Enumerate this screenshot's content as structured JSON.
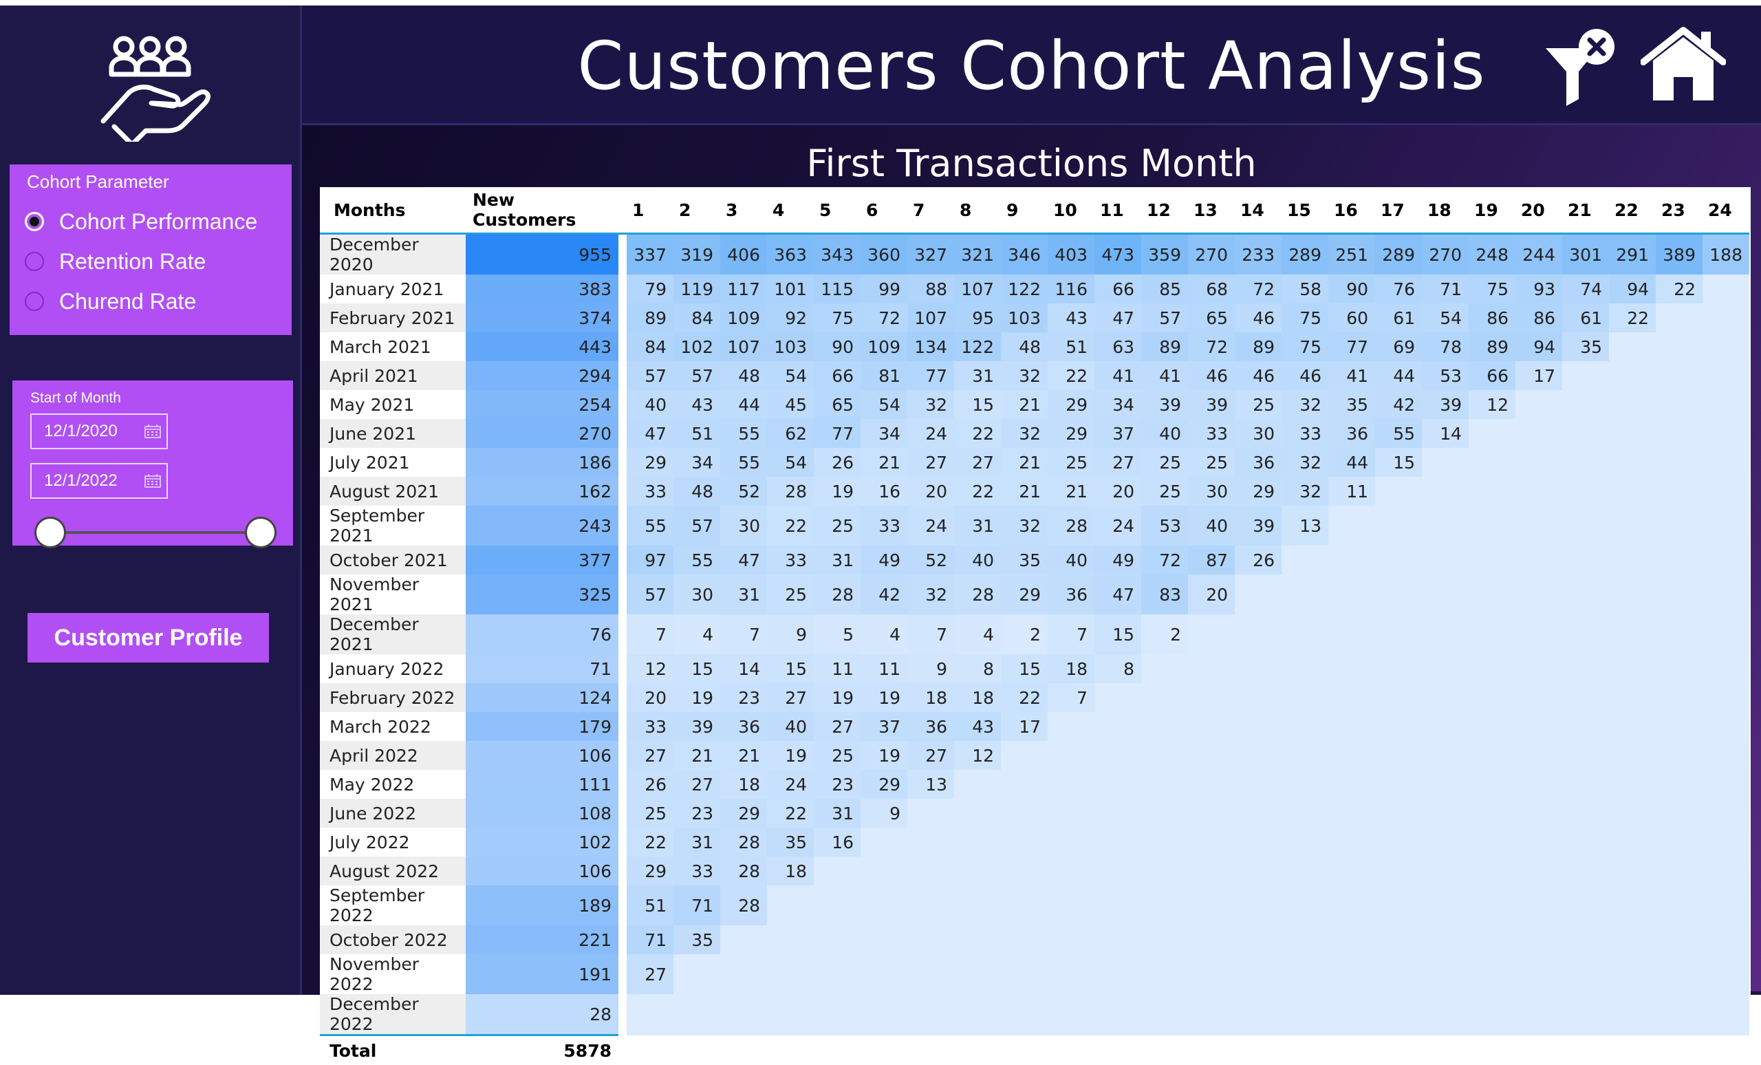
{
  "header": {
    "title": "Customers Cohort Analysis"
  },
  "main": {
    "section_title": "First Transactions Month"
  },
  "sidebar": {
    "logo_icon": "hand-holding-people-icon",
    "cohort_parameter": {
      "title": "Cohort Parameter",
      "options": [
        {
          "label": "Cohort Performance",
          "selected": true
        },
        {
          "label": "Retention Rate",
          "selected": false
        },
        {
          "label": "Churend Rate",
          "selected": false
        }
      ]
    },
    "date_filter": {
      "title": "Start of Month",
      "start": "12/1/2020",
      "end": "12/1/2022"
    },
    "profile_button": "Customer Profile"
  },
  "icons": {
    "clear_filter": "filter-clear-icon",
    "home": "home-icon",
    "calendar": "calendar-icon"
  },
  "colors": {
    "panel": "#b14ff4",
    "background": "#1d1746",
    "accent_line": "#24a0d8"
  },
  "table": {
    "headers": {
      "months": "Months",
      "new_customers": "New Customers"
    },
    "period_headers": [
      "1",
      "2",
      "3",
      "4",
      "5",
      "6",
      "7",
      "8",
      "9",
      "10",
      "11",
      "12",
      "13",
      "14",
      "15",
      "16",
      "17",
      "18",
      "19",
      "20",
      "21",
      "22",
      "23",
      "24"
    ],
    "rows": [
      {
        "month": "December 2020",
        "new": 955,
        "values": [
          337,
          319,
          406,
          363,
          343,
          360,
          327,
          321,
          346,
          403,
          473,
          359,
          270,
          233,
          289,
          251,
          289,
          270,
          248,
          244,
          301,
          291,
          389,
          188
        ]
      },
      {
        "month": "January 2021",
        "new": 383,
        "values": [
          79,
          119,
          117,
          101,
          115,
          99,
          88,
          107,
          122,
          116,
          66,
          85,
          68,
          72,
          58,
          90,
          76,
          71,
          75,
          93,
          74,
          94,
          22
        ]
      },
      {
        "month": "February 2021",
        "new": 374,
        "values": [
          89,
          84,
          109,
          92,
          75,
          72,
          107,
          95,
          103,
          43,
          47,
          57,
          65,
          46,
          75,
          60,
          61,
          54,
          86,
          86,
          61,
          22
        ]
      },
      {
        "month": "March 2021",
        "new": 443,
        "values": [
          84,
          102,
          107,
          103,
          90,
          109,
          134,
          122,
          48,
          51,
          63,
          89,
          72,
          89,
          75,
          77,
          69,
          78,
          89,
          94,
          35
        ]
      },
      {
        "month": "April 2021",
        "new": 294,
        "values": [
          57,
          57,
          48,
          54,
          66,
          81,
          77,
          31,
          32,
          22,
          41,
          41,
          46,
          46,
          46,
          41,
          44,
          53,
          66,
          17
        ]
      },
      {
        "month": "May 2021",
        "new": 254,
        "values": [
          40,
          43,
          44,
          45,
          65,
          54,
          32,
          15,
          21,
          29,
          34,
          39,
          39,
          25,
          32,
          35,
          42,
          39,
          12
        ]
      },
      {
        "month": "June 2021",
        "new": 270,
        "values": [
          47,
          51,
          55,
          62,
          77,
          34,
          24,
          22,
          32,
          29,
          37,
          40,
          33,
          30,
          33,
          36,
          55,
          14
        ]
      },
      {
        "month": "July 2021",
        "new": 186,
        "values": [
          29,
          34,
          55,
          54,
          26,
          21,
          27,
          27,
          21,
          25,
          27,
          25,
          25,
          36,
          32,
          44,
          15
        ]
      },
      {
        "month": "August 2021",
        "new": 162,
        "values": [
          33,
          48,
          52,
          28,
          19,
          16,
          20,
          22,
          21,
          21,
          20,
          25,
          30,
          29,
          32,
          11
        ]
      },
      {
        "month": "September 2021",
        "new": 243,
        "values": [
          55,
          57,
          30,
          22,
          25,
          33,
          24,
          31,
          32,
          28,
          24,
          53,
          40,
          39,
          13
        ]
      },
      {
        "month": "October 2021",
        "new": 377,
        "values": [
          97,
          55,
          47,
          33,
          31,
          49,
          52,
          40,
          35,
          40,
          49,
          72,
          87,
          26
        ]
      },
      {
        "month": "November 2021",
        "new": 325,
        "values": [
          57,
          30,
          31,
          25,
          28,
          42,
          32,
          28,
          29,
          36,
          47,
          83,
          20
        ]
      },
      {
        "month": "December 2021",
        "new": 76,
        "values": [
          7,
          4,
          7,
          9,
          5,
          4,
          7,
          4,
          2,
          7,
          15,
          2
        ]
      },
      {
        "month": "January 2022",
        "new": 71,
        "values": [
          12,
          15,
          14,
          15,
          11,
          11,
          9,
          8,
          15,
          18,
          8
        ]
      },
      {
        "month": "February 2022",
        "new": 124,
        "values": [
          20,
          19,
          23,
          27,
          19,
          19,
          18,
          18,
          22,
          7
        ]
      },
      {
        "month": "March 2022",
        "new": 179,
        "values": [
          33,
          39,
          36,
          40,
          27,
          37,
          36,
          43,
          17
        ]
      },
      {
        "month": "April 2022",
        "new": 106,
        "values": [
          27,
          21,
          21,
          19,
          25,
          19,
          27,
          12
        ]
      },
      {
        "month": "May 2022",
        "new": 111,
        "values": [
          26,
          27,
          18,
          24,
          23,
          29,
          13
        ]
      },
      {
        "month": "June 2022",
        "new": 108,
        "values": [
          25,
          23,
          29,
          22,
          31,
          9
        ]
      },
      {
        "month": "July 2022",
        "new": 102,
        "values": [
          22,
          31,
          28,
          35,
          16
        ]
      },
      {
        "month": "August 2022",
        "new": 106,
        "values": [
          29,
          33,
          28,
          18
        ]
      },
      {
        "month": "September 2022",
        "new": 189,
        "values": [
          51,
          71,
          28
        ]
      },
      {
        "month": "October 2022",
        "new": 221,
        "values": [
          71,
          35
        ]
      },
      {
        "month": "November 2022",
        "new": 191,
        "values": [
          27
        ]
      },
      {
        "month": "December 2022",
        "new": 28,
        "values": []
      }
    ],
    "total": {
      "label": "Total",
      "value": "5878"
    }
  }
}
